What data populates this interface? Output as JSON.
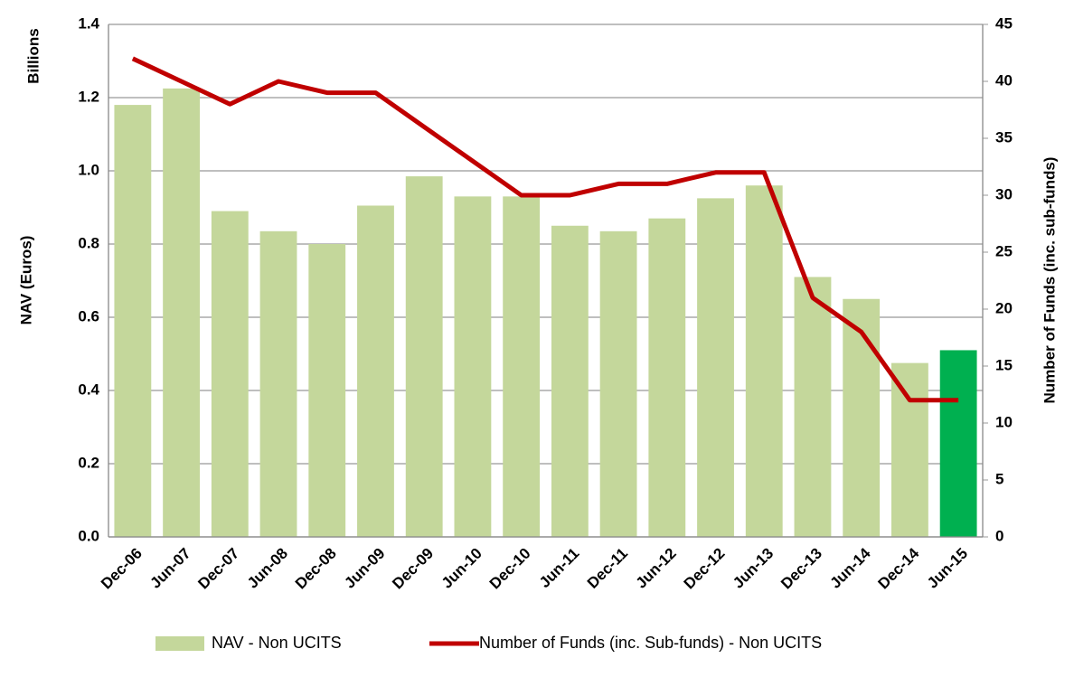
{
  "chart_data": {
    "type": "bar",
    "unit_label": "Billions",
    "y_label": "NAV (Euros)",
    "y2_label": "Number of Funds (inc. sub-funds)",
    "categories": [
      "Dec-06",
      "Jun-07",
      "Dec-07",
      "Jun-08",
      "Dec-08",
      "Jun-09",
      "Dec-09",
      "Jun-10",
      "Dec-10",
      "Jun-11",
      "Dec-11",
      "Jun-12",
      "Dec-12",
      "Jun-13",
      "Dec-13",
      "Jun-14",
      "Dec-14",
      "Jun-15"
    ],
    "series": [
      {
        "name": "NAV - Non UCITS",
        "type": "bar",
        "color": "#c4d79b",
        "colors": [
          "#c4d79b",
          "#c4d79b",
          "#c4d79b",
          "#c4d79b",
          "#c4d79b",
          "#c4d79b",
          "#c4d79b",
          "#c4d79b",
          "#c4d79b",
          "#c4d79b",
          "#c4d79b",
          "#c4d79b",
          "#c4d79b",
          "#c4d79b",
          "#c4d79b",
          "#c4d79b",
          "#c4d79b",
          "#00b050"
        ],
        "values": [
          1.18,
          1.225,
          0.89,
          0.835,
          0.8,
          0.905,
          0.985,
          0.93,
          0.93,
          0.85,
          0.835,
          0.87,
          0.925,
          0.96,
          0.71,
          0.65,
          0.475,
          0.51
        ]
      },
      {
        "name": "Number of Funds (inc. Sub-funds) - Non UCITS",
        "type": "line",
        "axis": "y2",
        "color": "#c00000",
        "values": [
          42,
          40,
          38,
          40,
          39,
          39,
          36,
          33,
          30,
          30,
          31,
          31,
          32,
          32,
          21,
          18,
          12,
          12
        ]
      }
    ],
    "ylim": [
      0,
      1.4
    ],
    "yticks": [
      {
        "value": 0,
        "label": "0.0"
      },
      0.2,
      0.4,
      0.6,
      0.8,
      {
        "value": 1,
        "label": "1.0"
      },
      1.2,
      1.4
    ],
    "y2lim": [
      0,
      45
    ],
    "y2ticks": [
      0,
      5,
      10,
      15,
      20,
      25,
      30,
      35,
      40,
      45
    ],
    "grid": true,
    "legend": "bottom"
  }
}
